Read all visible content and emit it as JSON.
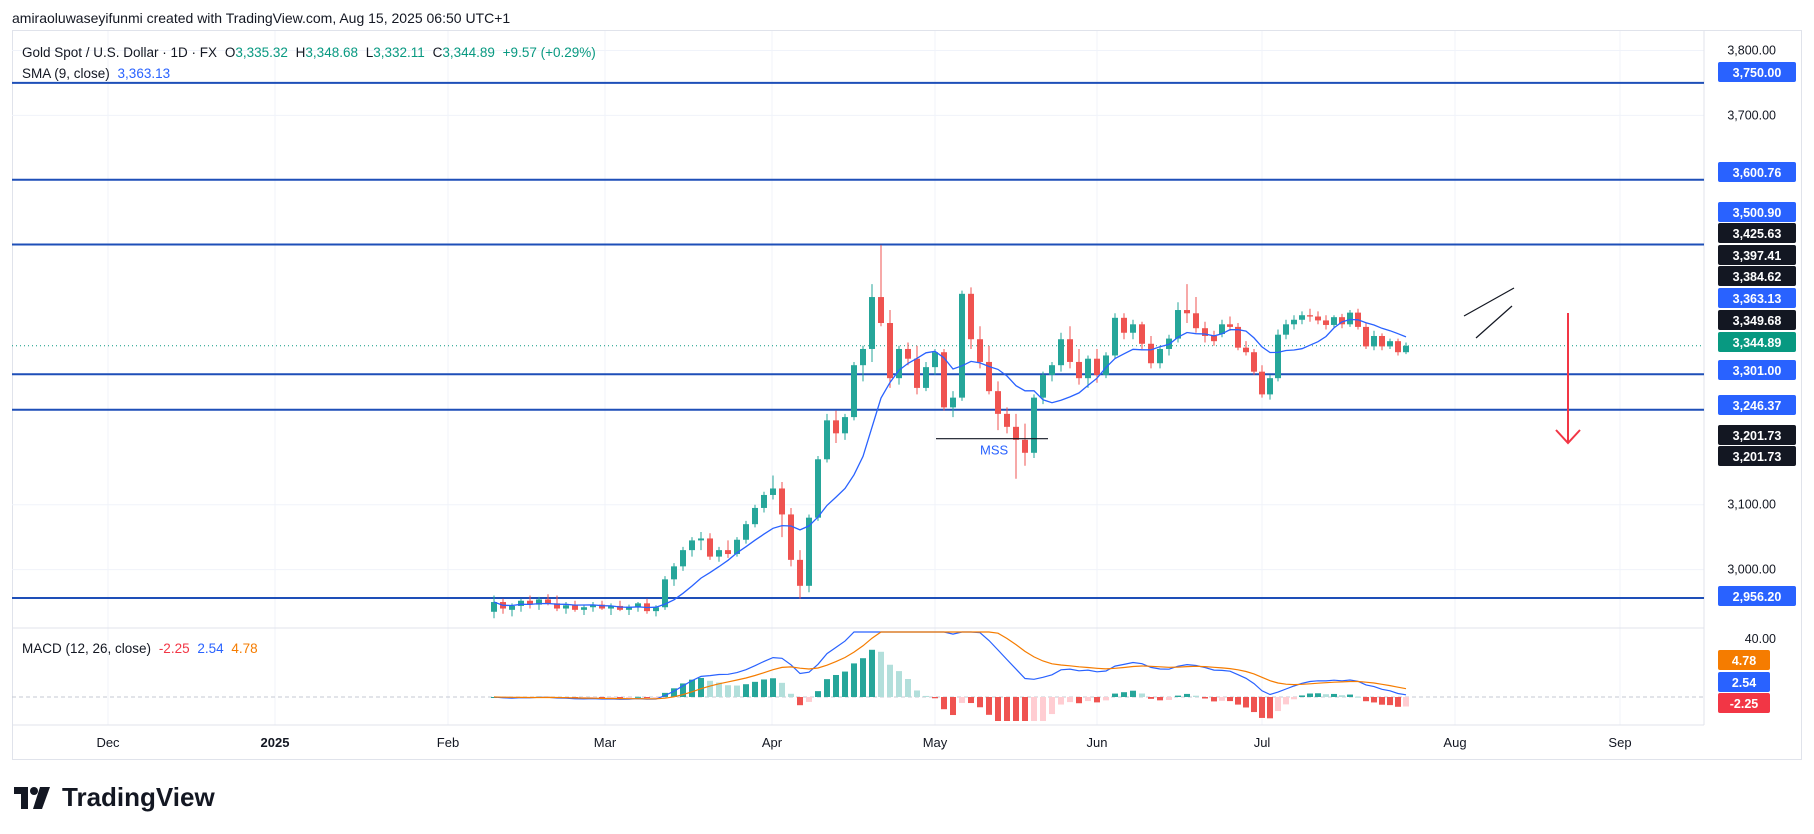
{
  "header": {
    "credit": "amiraoluwaseyifunmi created with TradingView.com, Aug 15, 2025 06:50 UTC+1"
  },
  "legend": {
    "symbol": "Gold Spot / U.S. Dollar · 1D · FX",
    "o_label": "O",
    "o": "3,335.32",
    "h_label": "H",
    "h": "3,348.68",
    "l_label": "L",
    "l": "3,332.11",
    "c_label": "C",
    "c": "3,344.89",
    "change": "+9.57 (+0.29%)",
    "sma_label": "SMA (9, close)",
    "sma": "3,363.13",
    "macd_label": "MACD (12, 26, close)",
    "macd_hist": "-2.25",
    "macd_line": "2.54",
    "macd_signal": "4.78"
  },
  "annotation": {
    "mss": "MSS"
  },
  "branding": {
    "name": "TradingView"
  },
  "colors": {
    "up": "#26a69a",
    "down": "#ef5350",
    "level": "#1e4fb8",
    "sma": "#2962ff",
    "macd": "#2962ff",
    "signal": "#f57c00",
    "hist_up": "#26a69a",
    "hist_up_light": "#b2dfdb",
    "hist_down": "#ef5350",
    "hist_down_light": "#ffcdd2",
    "arrow": "#f23645"
  },
  "chart_data": {
    "type": "candlestick",
    "y_range": [
      2910,
      3830
    ],
    "y_ticks": [
      {
        "v": 3800,
        "label": "3,800.00"
      },
      {
        "v": 3700,
        "label": "3,700.00"
      },
      {
        "v": 3100,
        "label": "3,100.00"
      },
      {
        "v": 3000,
        "label": "3,000.00"
      }
    ],
    "x_ticks": [
      {
        "label": "Dec",
        "bold": false
      },
      {
        "label": "2025",
        "bold": true
      },
      {
        "label": "Feb",
        "bold": false
      },
      {
        "label": "Mar",
        "bold": false
      },
      {
        "label": "Apr",
        "bold": false
      },
      {
        "label": "May",
        "bold": false
      },
      {
        "label": "Jun",
        "bold": false
      },
      {
        "label": "Jul",
        "bold": false
      },
      {
        "label": "Aug",
        "bold": false
      },
      {
        "label": "Sep",
        "bold": false
      }
    ],
    "levels": [
      3750.0,
      3600.76,
      3500.9,
      3301.0,
      3246.37,
      2956.2
    ],
    "price_tags": [
      {
        "v": 3750.0,
        "label": "3,750.00",
        "bg": "#2962ff"
      },
      {
        "v": 3600.76,
        "label": "3,600.76",
        "bg": "#2962ff"
      },
      {
        "v": 3500.9,
        "label": "3,500.90",
        "bg": "#2962ff"
      },
      {
        "v": 3425.63,
        "label": "3,425.63",
        "bg": "#131722"
      },
      {
        "v": 3397.41,
        "label": "3,397.41",
        "bg": "#131722"
      },
      {
        "v": 3384.62,
        "label": "3,384.62",
        "bg": "#131722"
      },
      {
        "v": 3363.13,
        "label": "3,363.13",
        "bg": "#2962ff"
      },
      {
        "v": 3349.68,
        "label": "3,349.68",
        "bg": "#131722"
      },
      {
        "v": 3344.89,
        "label": "3,344.89",
        "bg": "#089981"
      },
      {
        "v": 3301.0,
        "label": "3,301.00",
        "bg": "#2962ff"
      },
      {
        "v": 3246.37,
        "label": "3,246.37",
        "bg": "#2962ff"
      },
      {
        "v": 3201.73,
        "label": "3,201.73",
        "bg": "#131722"
      },
      {
        "v": 3201.73,
        "label": "3,201.73",
        "bg": "#131722"
      },
      {
        "v": 2956.2,
        "label": "2,956.20",
        "bg": "#2962ff"
      }
    ],
    "macd_ticks": [
      {
        "v": 40,
        "label": "40.00"
      }
    ],
    "macd_tags": [
      {
        "v": 4.78,
        "label": "4.78",
        "bg": "#f57c00"
      },
      {
        "v": 2.54,
        "label": "2.54",
        "bg": "#2962ff"
      },
      {
        "v": -2.25,
        "label": "-2.25",
        "bg": "#f23645"
      }
    ],
    "candles": [
      {
        "x": 1222,
        "o": 3363,
        "h": 3385,
        "l": 3358,
        "c": 3378
      },
      {
        "x": 1230,
        "o": 3378,
        "h": 3390,
        "l": 3368,
        "c": 3374
      },
      {
        "x": 1238,
        "o": 3374,
        "h": 3380,
        "l": 3338,
        "c": 3342
      },
      {
        "x": 1246,
        "o": 3342,
        "h": 3352,
        "l": 3330,
        "c": 3335
      },
      {
        "x": 1254,
        "o": 3335,
        "h": 3340,
        "l": 3300,
        "c": 3305
      },
      {
        "x": 1262,
        "o": 3305,
        "h": 3315,
        "l": 3265,
        "c": 3270
      },
      {
        "x": 1270,
        "o": 3270,
        "h": 3300,
        "l": 3262,
        "c": 3295
      },
      {
        "x": 1278,
        "o": 3295,
        "h": 3370,
        "l": 3290,
        "c": 3362
      },
      {
        "x": 1286,
        "o": 3362,
        "h": 3385,
        "l": 3355,
        "c": 3378
      },
      {
        "x": 1294,
        "o": 3378,
        "h": 3392,
        "l": 3370,
        "c": 3385
      },
      {
        "x": 1302,
        "o": 3385,
        "h": 3398,
        "l": 3378,
        "c": 3392
      },
      {
        "x": 1310,
        "o": 3392,
        "h": 3402,
        "l": 3382,
        "c": 3390
      },
      {
        "x": 1318,
        "o": 3390,
        "h": 3398,
        "l": 3378,
        "c": 3384
      },
      {
        "x": 1326,
        "o": 3384,
        "h": 3392,
        "l": 3370,
        "c": 3377
      },
      {
        "x": 1334,
        "o": 3377,
        "h": 3392,
        "l": 3372,
        "c": 3389
      },
      {
        "x": 1342,
        "o": 3389,
        "h": 3394,
        "l": 3372,
        "c": 3378
      },
      {
        "x": 1350,
        "o": 3378,
        "h": 3400,
        "l": 3374,
        "c": 3396
      },
      {
        "x": 1358,
        "o": 3396,
        "h": 3402,
        "l": 3370,
        "c": 3374
      },
      {
        "x": 1366,
        "o": 3374,
        "h": 3380,
        "l": 3340,
        "c": 3344
      },
      {
        "x": 1374,
        "o": 3344,
        "h": 3368,
        "l": 3338,
        "c": 3360
      },
      {
        "x": 1382,
        "o": 3360,
        "h": 3364,
        "l": 3338,
        "c": 3344
      },
      {
        "x": 1390,
        "o": 3344,
        "h": 3356,
        "l": 3340,
        "c": 3352
      },
      {
        "x": 1398,
        "o": 3352,
        "h": 3356,
        "l": 3330,
        "c": 3335
      },
      {
        "x": 1406,
        "o": 3335,
        "h": 3350,
        "l": 3332,
        "c": 3345
      }
    ],
    "candles_early": [
      {
        "x": 494,
        "o": 2935,
        "h": 2960,
        "l": 2925,
        "c": 2950
      },
      {
        "x": 503,
        "o": 2950,
        "h": 2955,
        "l": 2932,
        "c": 2940
      },
      {
        "x": 512,
        "o": 2938,
        "h": 2948,
        "l": 2928,
        "c": 2944
      },
      {
        "x": 521,
        "o": 2944,
        "h": 2955,
        "l": 2935,
        "c": 2952
      },
      {
        "x": 530,
        "o": 2952,
        "h": 2960,
        "l": 2940,
        "c": 2946
      },
      {
        "x": 539,
        "o": 2946,
        "h": 2958,
        "l": 2938,
        "c": 2954
      },
      {
        "x": 548,
        "o": 2954,
        "h": 2962,
        "l": 2945,
        "c": 2948
      },
      {
        "x": 557,
        "o": 2948,
        "h": 2960,
        "l": 2936,
        "c": 2940
      },
      {
        "x": 566,
        "o": 2940,
        "h": 2950,
        "l": 2932,
        "c": 2945
      },
      {
        "x": 575,
        "o": 2945,
        "h": 2952,
        "l": 2935,
        "c": 2938
      },
      {
        "x": 584,
        "o": 2938,
        "h": 2946,
        "l": 2930,
        "c": 2942
      },
      {
        "x": 593,
        "o": 2942,
        "h": 2950,
        "l": 2935,
        "c": 2946
      },
      {
        "x": 602,
        "o": 2946,
        "h": 2952,
        "l": 2938,
        "c": 2940
      },
      {
        "x": 611,
        "o": 2940,
        "h": 2948,
        "l": 2930,
        "c": 2944
      },
      {
        "x": 620,
        "o": 2944,
        "h": 2952,
        "l": 2936,
        "c": 2938
      },
      {
        "x": 629,
        "o": 2938,
        "h": 2946,
        "l": 2930,
        "c": 2943
      },
      {
        "x": 638,
        "o": 2943,
        "h": 2950,
        "l": 2935,
        "c": 2948
      },
      {
        "x": 647,
        "o": 2948,
        "h": 2955,
        "l": 2932,
        "c": 2936
      },
      {
        "x": 656,
        "o": 2936,
        "h": 2945,
        "l": 2928,
        "c": 2942
      },
      {
        "x": 665,
        "o": 2942,
        "h": 2990,
        "l": 2938,
        "c": 2985
      },
      {
        "x": 674,
        "o": 2985,
        "h": 3010,
        "l": 2975,
        "c": 3005
      },
      {
        "x": 683,
        "o": 3005,
        "h": 3035,
        "l": 2998,
        "c": 3030
      },
      {
        "x": 692,
        "o": 3030,
        "h": 3050,
        "l": 3020,
        "c": 3045
      },
      {
        "x": 701,
        "o": 3045,
        "h": 3058,
        "l": 3030,
        "c": 3048
      },
      {
        "x": 710,
        "o": 3048,
        "h": 3056,
        "l": 3015,
        "c": 3020
      },
      {
        "x": 719,
        "o": 3020,
        "h": 3035,
        "l": 3012,
        "c": 3030
      },
      {
        "x": 728,
        "o": 3030,
        "h": 3045,
        "l": 3018,
        "c": 3024
      },
      {
        "x": 737,
        "o": 3024,
        "h": 3050,
        "l": 3020,
        "c": 3046
      },
      {
        "x": 746,
        "o": 3046,
        "h": 3075,
        "l": 3040,
        "c": 3070
      },
      {
        "x": 755,
        "o": 3070,
        "h": 3100,
        "l": 3065,
        "c": 3095
      },
      {
        "x": 764,
        "o": 3095,
        "h": 3120,
        "l": 3088,
        "c": 3115
      },
      {
        "x": 773,
        "o": 3115,
        "h": 3145,
        "l": 3108,
        "c": 3125
      },
      {
        "x": 782,
        "o": 3125,
        "h": 3135,
        "l": 3050,
        "c": 3085
      },
      {
        "x": 791,
        "o": 3085,
        "h": 3095,
        "l": 3005,
        "c": 3015
      },
      {
        "x": 800,
        "o": 3015,
        "h": 3030,
        "l": 2955,
        "c": 2975
      },
      {
        "x": 809,
        "o": 2975,
        "h": 3085,
        "l": 2965,
        "c": 3080
      },
      {
        "x": 818,
        "o": 3080,
        "h": 3175,
        "l": 3075,
        "c": 3170
      },
      {
        "x": 827,
        "o": 3170,
        "h": 3240,
        "l": 3165,
        "c": 3230
      },
      {
        "x": 836,
        "o": 3230,
        "h": 3245,
        "l": 3195,
        "c": 3210
      },
      {
        "x": 845,
        "o": 3210,
        "h": 3240,
        "l": 3200,
        "c": 3235
      },
      {
        "x": 854,
        "o": 3235,
        "h": 3320,
        "l": 3230,
        "c": 3315
      },
      {
        "x": 863,
        "o": 3315,
        "h": 3345,
        "l": 3290,
        "c": 3340
      },
      {
        "x": 872,
        "o": 3340,
        "h": 3440,
        "l": 3320,
        "c": 3420
      },
      {
        "x": 881,
        "o": 3420,
        "h": 3500,
        "l": 3375,
        "c": 3380
      },
      {
        "x": 890,
        "o": 3380,
        "h": 3400,
        "l": 3280,
        "c": 3295
      },
      {
        "x": 899,
        "o": 3295,
        "h": 3345,
        "l": 3285,
        "c": 3340
      },
      {
        "x": 908,
        "o": 3340,
        "h": 3350,
        "l": 3315,
        "c": 3325
      },
      {
        "x": 917,
        "o": 3325,
        "h": 3345,
        "l": 3270,
        "c": 3280
      },
      {
        "x": 926,
        "o": 3280,
        "h": 3320,
        "l": 3275,
        "c": 3312
      },
      {
        "x": 935,
        "o": 3312,
        "h": 3340,
        "l": 3300,
        "c": 3335
      },
      {
        "x": 944,
        "o": 3335,
        "h": 3340,
        "l": 3245,
        "c": 3250
      },
      {
        "x": 953,
        "o": 3250,
        "h": 3275,
        "l": 3235,
        "c": 3265
      },
      {
        "x": 962,
        "o": 3265,
        "h": 3430,
        "l": 3260,
        "c": 3425
      },
      {
        "x": 971,
        "o": 3425,
        "h": 3435,
        "l": 3340,
        "c": 3355
      },
      {
        "x": 980,
        "o": 3355,
        "h": 3375,
        "l": 3310,
        "c": 3320
      },
      {
        "x": 989,
        "o": 3320,
        "h": 3345,
        "l": 3270,
        "c": 3275
      },
      {
        "x": 998,
        "o": 3275,
        "h": 3290,
        "l": 3215,
        "c": 3240
      },
      {
        "x": 1007,
        "o": 3240,
        "h": 3250,
        "l": 3210,
        "c": 3220
      },
      {
        "x": 1016,
        "o": 3220,
        "h": 3240,
        "l": 3140,
        "c": 3200
      },
      {
        "x": 1025,
        "o": 3200,
        "h": 3225,
        "l": 3160,
        "c": 3180
      },
      {
        "x": 1034,
        "o": 3180,
        "h": 3270,
        "l": 3172,
        "c": 3265
      },
      {
        "x": 1043,
        "o": 3265,
        "h": 3305,
        "l": 3255,
        "c": 3300
      },
      {
        "x": 1052,
        "o": 3300,
        "h": 3320,
        "l": 3290,
        "c": 3315
      },
      {
        "x": 1061,
        "o": 3315,
        "h": 3365,
        "l": 3305,
        "c": 3355
      },
      {
        "x": 1070,
        "o": 3355,
        "h": 3375,
        "l": 3310,
        "c": 3320
      },
      {
        "x": 1079,
        "o": 3320,
        "h": 3340,
        "l": 3285,
        "c": 3295
      },
      {
        "x": 1088,
        "o": 3295,
        "h": 3330,
        "l": 3280,
        "c": 3325
      },
      {
        "x": 1097,
        "o": 3325,
        "h": 3340,
        "l": 3288,
        "c": 3300
      },
      {
        "x": 1106,
        "o": 3300,
        "h": 3335,
        "l": 3295,
        "c": 3330
      },
      {
        "x": 1115,
        "o": 3330,
        "h": 3395,
        "l": 3325,
        "c": 3388
      },
      {
        "x": 1124,
        "o": 3388,
        "h": 3395,
        "l": 3355,
        "c": 3365
      },
      {
        "x": 1133,
        "o": 3365,
        "h": 3385,
        "l": 3355,
        "c": 3378
      },
      {
        "x": 1142,
        "o": 3378,
        "h": 3382,
        "l": 3340,
        "c": 3348
      },
      {
        "x": 1151,
        "o": 3348,
        "h": 3360,
        "l": 3310,
        "c": 3318
      },
      {
        "x": 1160,
        "o": 3318,
        "h": 3345,
        "l": 3310,
        "c": 3340
      },
      {
        "x": 1169,
        "o": 3340,
        "h": 3362,
        "l": 3330,
        "c": 3356
      },
      {
        "x": 1178,
        "o": 3356,
        "h": 3412,
        "l": 3350,
        "c": 3400
      },
      {
        "x": 1187,
        "o": 3400,
        "h": 3440,
        "l": 3380,
        "c": 3395
      },
      {
        "x": 1196,
        "o": 3395,
        "h": 3420,
        "l": 3365,
        "c": 3372
      },
      {
        "x": 1205,
        "o": 3372,
        "h": 3382,
        "l": 3350,
        "c": 3360
      },
      {
        "x": 1214,
        "o": 3360,
        "h": 3368,
        "l": 3345,
        "c": 3352
      }
    ]
  }
}
